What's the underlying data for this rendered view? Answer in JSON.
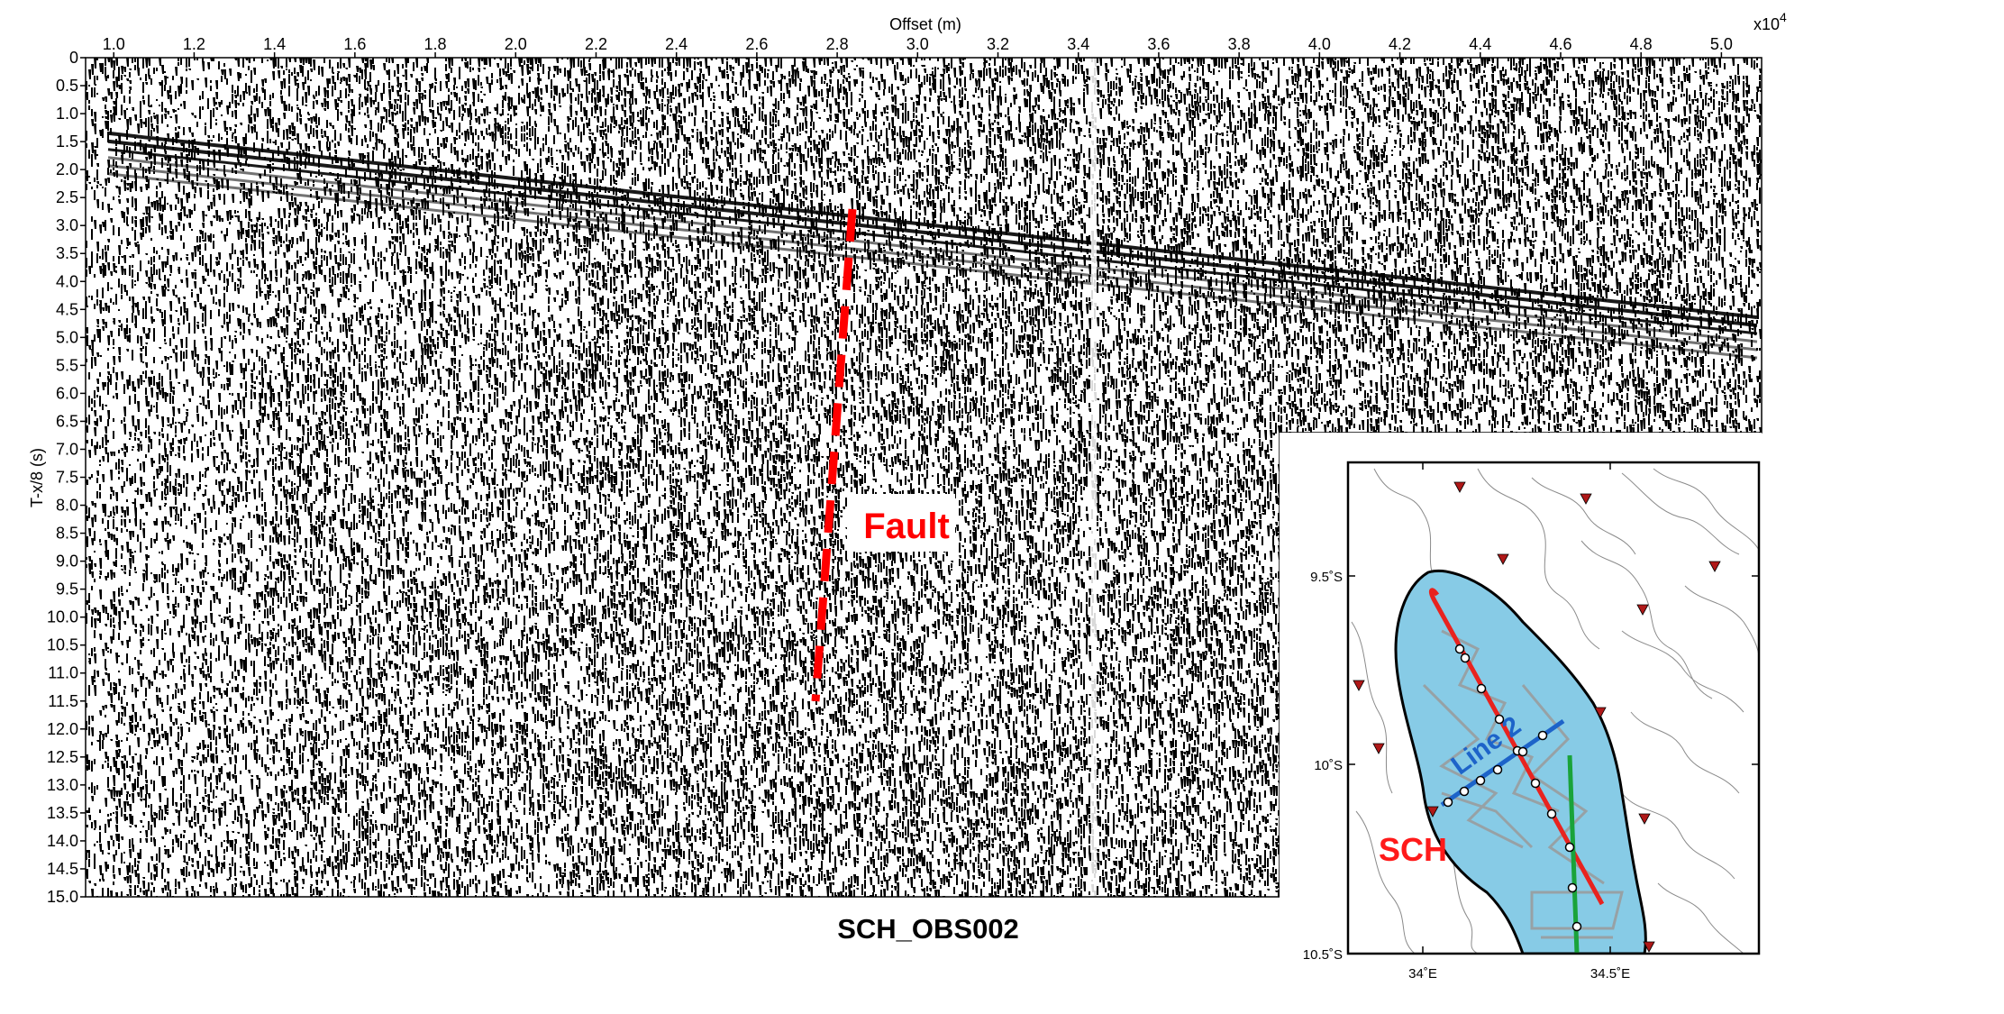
{
  "section": {
    "xlabel": "Offset (m)",
    "ylabel": "T-x/8 (s)",
    "exponent_base": "x10",
    "exponent_power": "4",
    "x_ticks": [
      "1.0",
      "1.2",
      "1.4",
      "1.6",
      "1.8",
      "2.0",
      "2.2",
      "2.4",
      "2.6",
      "2.8",
      "3.0",
      "3.2",
      "3.4",
      "3.6",
      "3.8",
      "4.0",
      "4.2",
      "4.4",
      "4.6",
      "4.8",
      "5.0"
    ],
    "x_tick_values": [
      1.0,
      1.2,
      1.4,
      1.6,
      1.8,
      2.0,
      2.2,
      2.4,
      2.6,
      2.8,
      3.0,
      3.2,
      3.4,
      3.6,
      3.8,
      4.0,
      4.2,
      4.4,
      4.6,
      4.8,
      5.0
    ],
    "x_range": [
      0.93,
      5.1
    ],
    "y_ticks": [
      "0",
      "0.5",
      "1.0",
      "1.5",
      "2.0",
      "2.5",
      "3.0",
      "3.5",
      "4.0",
      "4.5",
      "5.0",
      "5.5",
      "6.0",
      "6.5",
      "7.0",
      "7.5",
      "8.0",
      "8.5",
      "9.0",
      "9.5",
      "10.0",
      "10.5",
      "11.0",
      "11.5",
      "12.0",
      "12.5",
      "13.0",
      "13.5",
      "14.0",
      "14.5",
      "15.0"
    ],
    "y_range": [
      0,
      15
    ],
    "fault_label": "Fault",
    "fault_color": "#ff0000",
    "title": "SCH_OBS002"
  },
  "inset_map": {
    "lat_labels": [
      "9.5˚S",
      "10˚S",
      "10.5˚S"
    ],
    "lon_labels": [
      "34˚E",
      "34.5˚E"
    ],
    "lake_label": "SCH",
    "line_label": "Line 2",
    "lake_color": "#87cbe6",
    "red_line_color": "#e8231f",
    "blue_line_color": "#1d63c9",
    "green_line_color": "#1aa33a",
    "station_marker_color": "#b01818"
  }
}
